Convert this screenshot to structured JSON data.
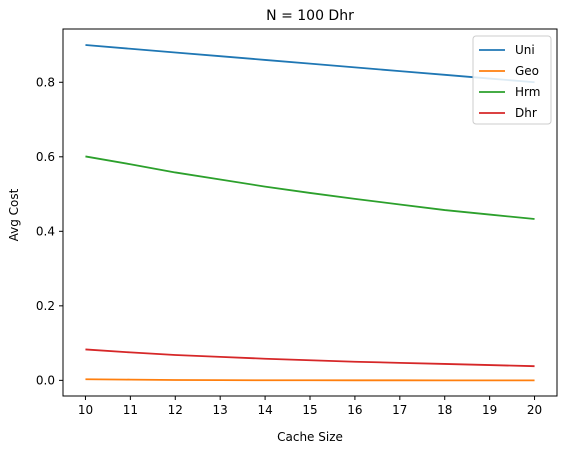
{
  "chart_data": {
    "type": "line",
    "title": "N = 100 Dhr",
    "xlabel": "Cache Size",
    "ylabel": "Avg Cost",
    "x": [
      10,
      11,
      12,
      13,
      14,
      15,
      16,
      17,
      18,
      19,
      20
    ],
    "xticks": [
      "10",
      "11",
      "12",
      "13",
      "14",
      "15",
      "16",
      "17",
      "18",
      "19",
      "20"
    ],
    "yticks": [
      0.0,
      0.2,
      0.4,
      0.6,
      0.8
    ],
    "ytick_labels": [
      "0.0",
      "0.2",
      "0.4",
      "0.6",
      "0.8"
    ],
    "xlim": [
      9.5,
      20.5
    ],
    "ylim": [
      -0.042,
      0.943
    ],
    "grid": false,
    "legend_position": "top-right",
    "series": [
      {
        "name": "Uni",
        "color": "#1f77b4",
        "values": [
          0.9,
          0.89,
          0.88,
          0.87,
          0.86,
          0.85,
          0.84,
          0.83,
          0.82,
          0.81,
          0.8
        ]
      },
      {
        "name": "Geo",
        "color": "#ff7f0e",
        "values": [
          0.003,
          0.002,
          0.001,
          0.0006,
          0.0003,
          0.0002,
          0.0001,
          5e-05,
          3e-05,
          2e-05,
          1e-05
        ]
      },
      {
        "name": "Hrm",
        "color": "#2ca02c",
        "values": [
          0.601,
          0.58,
          0.558,
          0.539,
          0.52,
          0.503,
          0.487,
          0.472,
          0.457,
          0.445,
          0.433
        ]
      },
      {
        "name": "Dhr",
        "color": "#d62728",
        "values": [
          0.083,
          0.075,
          0.068,
          0.063,
          0.058,
          0.054,
          0.05,
          0.047,
          0.044,
          0.041,
          0.038
        ]
      }
    ]
  }
}
